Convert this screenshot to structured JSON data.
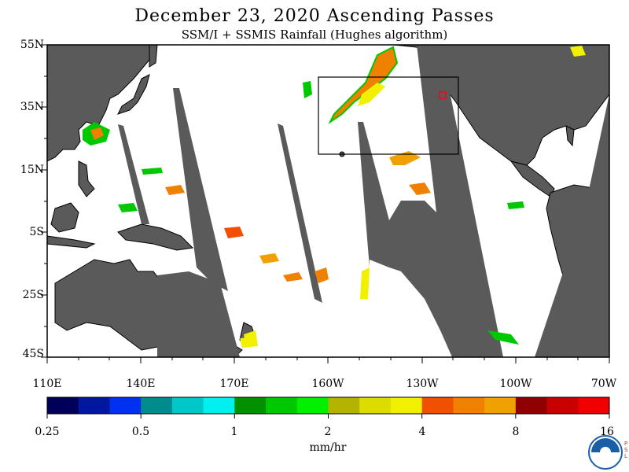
{
  "header": {
    "title": "December 23, 2020  Ascending Passes",
    "subtitle": "SSM/I + SSMIS Rainfall (Hughes algorithm)"
  },
  "map": {
    "lat_labels": [
      "55N",
      "35N",
      "15N",
      "5S",
      "25S",
      "45S"
    ],
    "lon_labels": [
      "110E",
      "140E",
      "170E",
      "160W",
      "130W",
      "100W",
      "70W"
    ],
    "colors": {
      "land": "#5a5a5a",
      "ocean": "#ffffff",
      "coast": "#000000",
      "box": "#000000",
      "marker": "#ff0000"
    }
  },
  "colorbar": {
    "labels": [
      "0.25",
      "0.5",
      "1",
      "2",
      "4",
      "8",
      "16"
    ],
    "units": "mm/hr",
    "colors": [
      "#00005a",
      "#0018a0",
      "#0030f0",
      "#008c8c",
      "#00c8c8",
      "#00f0f0",
      "#009000",
      "#00c800",
      "#00f000",
      "#b4b400",
      "#dcdc00",
      "#f0f000",
      "#f05000",
      "#f08000",
      "#f0a000",
      "#900000",
      "#c80000",
      "#f00000"
    ]
  },
  "logo": {
    "text": "PSL"
  }
}
